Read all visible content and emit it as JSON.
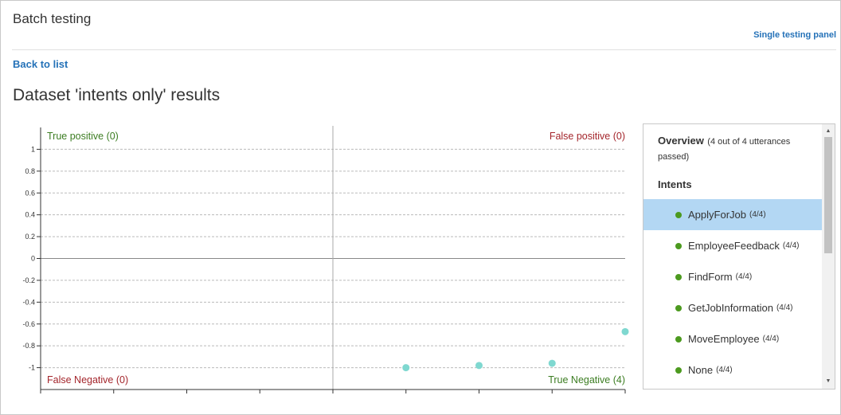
{
  "header": {
    "title": "Batch testing",
    "single_testing_link": "Single testing panel",
    "back_link": "Back to list",
    "page_title": "Dataset 'intents only' results"
  },
  "chart_data": {
    "type": "scatter",
    "quadrant_labels": {
      "top_left": "True positive (0)",
      "top_right": "False positive (0)",
      "bottom_left": "False Negative (0)",
      "bottom_right": "True Negative (4)"
    },
    "y_ticks": [
      "1",
      "0.8",
      "0.6",
      "0.4",
      "0.2",
      "0",
      "-0.2",
      "-0.4",
      "-0.6",
      "-0.8",
      "-1"
    ],
    "ylim": [
      -1.2,
      1.2
    ],
    "points": [
      {
        "x": 0.2,
        "y": -1.0
      },
      {
        "x": 0.4,
        "y": -0.98
      },
      {
        "x": 0.6,
        "y": -0.96
      },
      {
        "x": 0.8,
        "y": -0.67
      }
    ],
    "xlim": [
      -0.8,
      0.8
    ],
    "grid": true,
    "colors": {
      "positive_label": "#3c7d22",
      "negative_label": "#a4262c",
      "point": "#7fd8d0"
    }
  },
  "panel": {
    "overview_title": "Overview",
    "overview_subtitle": "(4 out of 4 utterances passed)",
    "intents_heading": "Intents",
    "intents": [
      {
        "name": "ApplyForJob",
        "count": "(4/4)"
      },
      {
        "name": "EmployeeFeedback",
        "count": "(4/4)"
      },
      {
        "name": "FindForm",
        "count": "(4/4)"
      },
      {
        "name": "GetJobInformation",
        "count": "(4/4)"
      },
      {
        "name": "MoveEmployee",
        "count": "(4/4)"
      },
      {
        "name": "None",
        "count": "(4/4)"
      }
    ],
    "selected_index": 0,
    "scroll_up_icon": "triangle-up",
    "scroll_down_icon": "triangle-down",
    "status_dot_color": "#4c9a1f",
    "selected_color": "#b3d7f3"
  }
}
